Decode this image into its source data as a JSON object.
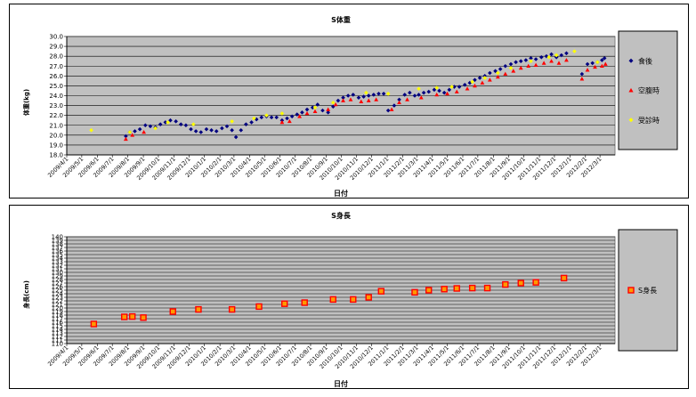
{
  "chart_data": [
    {
      "type": "scatter",
      "title": "S体重",
      "xlabel": "日付",
      "ylabel": "体重(kg)",
      "ylim": [
        18.0,
        30.0
      ],
      "y_ticks": [
        "18.0",
        "19.0",
        "20.0",
        "21.0",
        "22.0",
        "23.0",
        "24.0",
        "25.0",
        "26.0",
        "27.0",
        "28.0",
        "29.0",
        "30.0"
      ],
      "x_range": [
        "2009/4/1",
        "2012/3/31"
      ],
      "x_ticks": [
        "2009/4/1",
        "2009/5/1",
        "2009/6/1",
        "2009/7/1",
        "2009/8/1",
        "2009/9/1",
        "2009/10/1",
        "2009/11/1",
        "2009/12/1",
        "2010/1/1",
        "2010/2/1",
        "2010/3/1",
        "2010/4/1",
        "2010/5/1",
        "2010/6/1",
        "2010/7/1",
        "2010/8/1",
        "2010/9/1",
        "2010/10/1",
        "2010/11/1",
        "2010/12/1",
        "2011/1/1",
        "2011/2/1",
        "2011/3/1",
        "2011/4/1",
        "2011/5/1",
        "2011/6/1",
        "2011/7/1",
        "2011/8/1",
        "2011/9/1",
        "2011/10/1",
        "2011/11/1",
        "2011/12/1",
        "2012/1/1",
        "2012/2/1",
        "2012/3/1"
      ],
      "plot_bg": "#c0c0c0",
      "grid": true,
      "legend_position": "right",
      "legend_bg": "#c0c0c0",
      "series": [
        {
          "name": "食後",
          "color": "#000080",
          "marker": "diamond",
          "points": [
            [
              "2009/7/28",
              19.9
            ],
            [
              "2009/8/5",
              20.3
            ],
            [
              "2009/8/15",
              20.4
            ],
            [
              "2009/8/25",
              20.6
            ],
            [
              "2009/9/5",
              21.0
            ],
            [
              "2009/9/15",
              20.9
            ],
            [
              "2009/9/25",
              20.8
            ],
            [
              "2009/10/5",
              21.1
            ],
            [
              "2009/10/15",
              21.3
            ],
            [
              "2009/10/25",
              21.5
            ],
            [
              "2009/11/5",
              21.4
            ],
            [
              "2009/11/15",
              21.1
            ],
            [
              "2009/11/25",
              21.0
            ],
            [
              "2009/12/5",
              20.6
            ],
            [
              "2009/12/15",
              20.4
            ],
            [
              "2009/12/25",
              20.3
            ],
            [
              "2010/1/5",
              20.6
            ],
            [
              "2010/1/15",
              20.5
            ],
            [
              "2010/1/25",
              20.4
            ],
            [
              "2010/2/5",
              20.7
            ],
            [
              "2010/2/15",
              20.9
            ],
            [
              "2010/2/25",
              20.5
            ],
            [
              "2010/3/5",
              19.8
            ],
            [
              "2010/3/15",
              20.5
            ],
            [
              "2010/3/25",
              21.1
            ],
            [
              "2010/4/5",
              21.3
            ],
            [
              "2010/4/15",
              21.6
            ],
            [
              "2010/4/25",
              21.8
            ],
            [
              "2010/5/5",
              21.9
            ],
            [
              "2010/5/15",
              21.8
            ],
            [
              "2010/5/25",
              21.8
            ],
            [
              "2010/6/5",
              21.5
            ],
            [
              "2010/6/15",
              21.7
            ],
            [
              "2010/6/25",
              21.9
            ],
            [
              "2010/7/5",
              22.1
            ],
            [
              "2010/7/15",
              22.3
            ],
            [
              "2010/7/25",
              22.6
            ],
            [
              "2010/8/5",
              22.8
            ],
            [
              "2010/8/15",
              23.1
            ],
            [
              "2010/8/25",
              22.5
            ],
            [
              "2010/9/5",
              22.3
            ],
            [
              "2010/9/15",
              22.9
            ],
            [
              "2010/9/25",
              23.5
            ],
            [
              "2010/10/5",
              23.8
            ],
            [
              "2010/10/15",
              24.0
            ],
            [
              "2010/10/25",
              24.1
            ],
            [
              "2010/11/5",
              23.8
            ],
            [
              "2010/11/15",
              23.9
            ],
            [
              "2010/11/25",
              24.0
            ],
            [
              "2010/12/5",
              24.1
            ],
            [
              "2010/12/15",
              24.2
            ],
            [
              "2010/12/25",
              24.2
            ],
            [
              "2011/1/3",
              22.5
            ],
            [
              "2011/1/15",
              23.0
            ],
            [
              "2011/1/25",
              23.6
            ],
            [
              "2011/2/5",
              24.1
            ],
            [
              "2011/2/15",
              24.3
            ],
            [
              "2011/2/25",
              24.0
            ],
            [
              "2011/3/5",
              24.1
            ],
            [
              "2011/3/15",
              24.3
            ],
            [
              "2011/3/25",
              24.4
            ],
            [
              "2011/4/5",
              24.6
            ],
            [
              "2011/4/15",
              24.5
            ],
            [
              "2011/4/25",
              24.3
            ],
            [
              "2011/5/5",
              24.6
            ],
            [
              "2011/5/15",
              24.9
            ],
            [
              "2011/5/25",
              24.9
            ],
            [
              "2011/6/5",
              25.1
            ],
            [
              "2011/6/15",
              25.3
            ],
            [
              "2011/6/25",
              25.6
            ],
            [
              "2011/7/5",
              25.8
            ],
            [
              "2011/7/15",
              26.0
            ],
            [
              "2011/7/25",
              26.3
            ],
            [
              "2011/8/5",
              26.5
            ],
            [
              "2011/8/15",
              26.7
            ],
            [
              "2011/8/25",
              27.0
            ],
            [
              "2011/9/5",
              27.2
            ],
            [
              "2011/9/15",
              27.4
            ],
            [
              "2011/9/25",
              27.5
            ],
            [
              "2011/10/5",
              27.6
            ],
            [
              "2011/10/15",
              27.8
            ],
            [
              "2011/10/25",
              27.7
            ],
            [
              "2011/11/5",
              27.9
            ],
            [
              "2011/11/15",
              28.0
            ],
            [
              "2011/11/25",
              28.2
            ],
            [
              "2011/12/5",
              27.9
            ],
            [
              "2011/12/15",
              28.1
            ],
            [
              "2011/12/25",
              28.3
            ],
            [
              "2012/1/25",
              26.2
            ],
            [
              "2012/2/5",
              27.2
            ],
            [
              "2012/2/15",
              27.3
            ],
            [
              "2012/2/25",
              27.4
            ],
            [
              "2012/3/5",
              27.6
            ],
            [
              "2012/3/10",
              27.8
            ]
          ]
        },
        {
          "name": "空腹時",
          "color": "#ff0000",
          "marker": "triangle",
          "points": [
            [
              "2009/7/28",
              19.6
            ],
            [
              "2009/8/10",
              20.0
            ],
            [
              "2009/9/2",
              20.3
            ],
            [
              "2010/6/5",
              21.3
            ],
            [
              "2010/6/20",
              21.4
            ],
            [
              "2010/7/10",
              21.9
            ],
            [
              "2010/7/25",
              22.2
            ],
            [
              "2010/8/10",
              22.4
            ],
            [
              "2010/9/5",
              22.6
            ],
            [
              "2010/9/20",
              23.1
            ],
            [
              "2010/10/5",
              23.5
            ],
            [
              "2010/10/20",
              23.6
            ],
            [
              "2010/11/10",
              23.4
            ],
            [
              "2010/11/25",
              23.5
            ],
            [
              "2010/12/10",
              23.6
            ],
            [
              "2011/1/10",
              22.6
            ],
            [
              "2011/1/25",
              23.3
            ],
            [
              "2011/2/10",
              23.6
            ],
            [
              "2011/3/10",
              23.8
            ],
            [
              "2011/4/10",
              24.1
            ],
            [
              "2011/5/1",
              24.2
            ],
            [
              "2011/5/20",
              24.4
            ],
            [
              "2011/6/10",
              24.7
            ],
            [
              "2011/6/25",
              25.0
            ],
            [
              "2011/7/10",
              25.3
            ],
            [
              "2011/7/25",
              25.6
            ],
            [
              "2011/8/10",
              25.9
            ],
            [
              "2011/8/25",
              26.2
            ],
            [
              "2011/9/10",
              26.5
            ],
            [
              "2011/9/25",
              26.8
            ],
            [
              "2011/10/10",
              27.0
            ],
            [
              "2011/10/25",
              27.1
            ],
            [
              "2011/11/10",
              27.3
            ],
            [
              "2011/11/25",
              27.5
            ],
            [
              "2011/12/10",
              27.3
            ],
            [
              "2011/12/25",
              27.6
            ],
            [
              "2012/1/25",
              25.7
            ],
            [
              "2012/2/5",
              26.6
            ],
            [
              "2012/2/20",
              26.9
            ],
            [
              "2012/3/5",
              27.0
            ],
            [
              "2012/3/12",
              27.2
            ]
          ]
        },
        {
          "name": "受診時",
          "color": "#ffff00",
          "marker": "diamond",
          "points": [
            [
              "2009/5/20",
              20.5
            ],
            [
              "2009/8/5",
              20.3
            ],
            [
              "2009/9/25",
              20.7
            ],
            [
              "2009/10/20",
              21.3
            ],
            [
              "2009/12/10",
              21.1
            ],
            [
              "2010/2/25",
              21.4
            ],
            [
              "2010/4/10",
              21.7
            ],
            [
              "2010/5/5",
              22.0
            ],
            [
              "2010/6/5",
              22.2
            ],
            [
              "2010/8/10",
              22.8
            ],
            [
              "2010/9/15",
              23.3
            ],
            [
              "2010/11/20",
              24.3
            ],
            [
              "2011/1/3",
              24.2
            ],
            [
              "2011/3/5",
              24.7
            ],
            [
              "2011/4/10",
              24.8
            ],
            [
              "2011/5/10",
              24.9
            ],
            [
              "2011/6/20",
              25.4
            ],
            [
              "2011/7/15",
              25.8
            ],
            [
              "2011/8/10",
              26.3
            ],
            [
              "2011/9/5",
              26.8
            ],
            [
              "2011/10/15",
              27.5
            ],
            [
              "2011/11/20",
              27.9
            ],
            [
              "2011/12/5",
              28.1
            ],
            [
              "2012/1/10",
              28.5
            ],
            [
              "2012/2/25",
              27.4
            ]
          ]
        }
      ]
    },
    {
      "type": "scatter",
      "title": "S身長",
      "xlabel": "日付",
      "ylabel": "身長(cm)",
      "ylim": [
        110,
        140
      ],
      "y_ticks": [
        "110",
        "111",
        "112",
        "113",
        "114",
        "115",
        "116",
        "117",
        "118",
        "119",
        "120",
        "121",
        "122",
        "123",
        "124",
        "125",
        "126",
        "127",
        "128",
        "129",
        "130",
        "131",
        "132",
        "133",
        "134",
        "135",
        "136",
        "137",
        "138",
        "139",
        "140"
      ],
      "x_range": [
        "2009/4/1",
        "2012/3/31"
      ],
      "x_ticks": [
        "2009/4/1",
        "2009/5/1",
        "2009/6/1",
        "2009/7/1",
        "2009/8/1",
        "2009/9/1",
        "2009/10/1",
        "2009/11/1",
        "2009/12/1",
        "2010/1/1",
        "2010/2/1",
        "2010/3/1",
        "2010/4/1",
        "2010/5/1",
        "2010/6/1",
        "2010/7/1",
        "2010/8/1",
        "2010/9/1",
        "2010/10/1",
        "2010/11/1",
        "2010/12/1",
        "2011/1/1",
        "2011/2/1",
        "2011/3/1",
        "2011/4/1",
        "2011/5/1",
        "2011/6/1",
        "2011/7/1",
        "2011/8/1",
        "2011/9/1",
        "2011/10/1",
        "2011/11/1",
        "2011/12/1",
        "2012/1/1",
        "2012/2/1",
        "2012/3/1"
      ],
      "plot_bg": "#c0c0c0",
      "grid": true,
      "legend_position": "right",
      "legend_bg": "#c0c0c0",
      "series": [
        {
          "name": "S身長",
          "color": "#ff0000",
          "fill": "#ff9900",
          "marker": "square",
          "points": [
            [
              "2009/5/25",
              115.5
            ],
            [
              "2009/7/25",
              117.5
            ],
            [
              "2009/8/10",
              117.6
            ],
            [
              "2009/9/1",
              117.3
            ],
            [
              "2009/10/30",
              119.0
            ],
            [
              "2009/12/20",
              119.6
            ],
            [
              "2010/2/25",
              119.6
            ],
            [
              "2010/4/20",
              120.4
            ],
            [
              "2010/6/10",
              121.2
            ],
            [
              "2010/7/20",
              121.5
            ],
            [
              "2010/9/15",
              122.4
            ],
            [
              "2010/10/25",
              122.4
            ],
            [
              "2010/11/25",
              123.0
            ],
            [
              "2010/12/20",
              124.7
            ],
            [
              "2011/2/25",
              124.4
            ],
            [
              "2011/3/25",
              125.0
            ],
            [
              "2011/4/25",
              125.3
            ],
            [
              "2011/5/20",
              125.5
            ],
            [
              "2011/6/20",
              125.6
            ],
            [
              "2011/7/20",
              125.6
            ],
            [
              "2011/8/25",
              126.6
            ],
            [
              "2011/9/25",
              127.0
            ],
            [
              "2011/10/25",
              127.2
            ],
            [
              "2011/12/20",
              128.4
            ]
          ]
        }
      ]
    }
  ]
}
